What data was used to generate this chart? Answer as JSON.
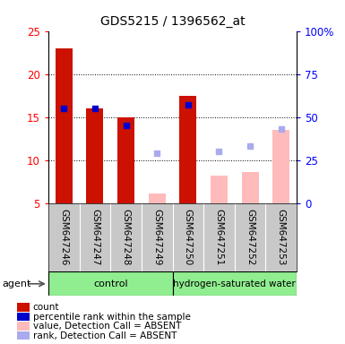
{
  "title": "GDS5215 / 1396562_at",
  "categories": [
    "GSM647246",
    "GSM647247",
    "GSM647248",
    "GSM647249",
    "GSM647250",
    "GSM647251",
    "GSM647252",
    "GSM647253"
  ],
  "bar_values": [
    23.0,
    16.0,
    15.0,
    null,
    17.5,
    null,
    null,
    null
  ],
  "bar_values_absent": [
    null,
    null,
    null,
    6.1,
    null,
    8.2,
    8.6,
    13.5
  ],
  "rank_pct": [
    55.0,
    55.0,
    45.0,
    null,
    57.0,
    null,
    null,
    null
  ],
  "rank_pct_absent": [
    null,
    null,
    null,
    29.0,
    null,
    30.0,
    33.0,
    43.0
  ],
  "ylim_left": [
    5,
    25
  ],
  "ylim_right": [
    0,
    100
  ],
  "yticks_left": [
    5,
    10,
    15,
    20,
    25
  ],
  "yticks_right": [
    0,
    25,
    50,
    75,
    100
  ],
  "ytick_labels_right": [
    "0",
    "25",
    "50",
    "75",
    "100%"
  ],
  "bar_color_present": "#cc1100",
  "bar_color_absent": "#ffbbbb",
  "rank_color_present": "#0000cc",
  "rank_color_absent": "#aaaaee",
  "legend_items": [
    {
      "label": "count",
      "color": "#cc1100"
    },
    {
      "label": "percentile rank within the sample",
      "color": "#0000cc"
    },
    {
      "label": "value, Detection Call = ABSENT",
      "color": "#ffbbbb"
    },
    {
      "label": "rank, Detection Call = ABSENT",
      "color": "#aaaaee"
    }
  ]
}
